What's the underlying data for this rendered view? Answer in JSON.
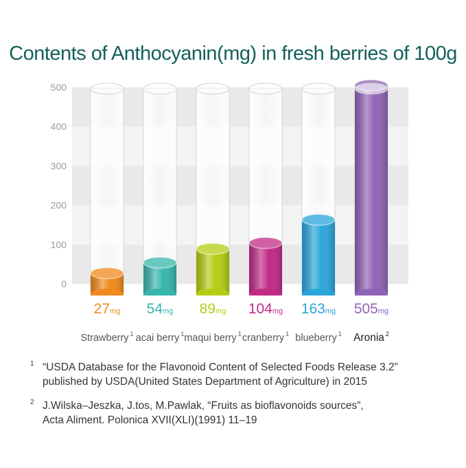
{
  "title": "Contents of Anthocyanin(mg) in fresh berries of 100g",
  "chart_data": {
    "type": "bar",
    "categories": [
      "Strawberry",
      "acai berry",
      "maqui berry",
      "cranberry",
      "blueberry",
      "Aronia"
    ],
    "category_sups": [
      "1",
      "1",
      "1",
      "1",
      "1",
      "2"
    ],
    "values": [
      27,
      54,
      89,
      104,
      163,
      505
    ],
    "value_labels": [
      "27",
      "54",
      "89",
      "104",
      "163",
      "505"
    ],
    "unit": "mg",
    "colors": [
      "#f08a1c",
      "#38b6ad",
      "#b5cc12",
      "#c02b86",
      "#2aa5db",
      "#8f63b6"
    ],
    "y_ticks": [
      0,
      100,
      200,
      300,
      400,
      500
    ],
    "ylim": [
      0,
      500
    ],
    "grid": true
  },
  "footnotes": [
    {
      "mark": "1",
      "lines": [
        "“USDA Database for the Flavonoid Content of Selected Foods Release 3.2”",
        "published by USDA(United States Department of Agriculture) in 2015"
      ]
    },
    {
      "mark": "2",
      "lines": [
        "J.Wilska–Jeszka, J.tos, M.Pawlak, “Fruits as bioflavonoids sources”,",
        "Acta Aliment. Polonica XVII(XLI)(1991) 11–19"
      ]
    }
  ]
}
